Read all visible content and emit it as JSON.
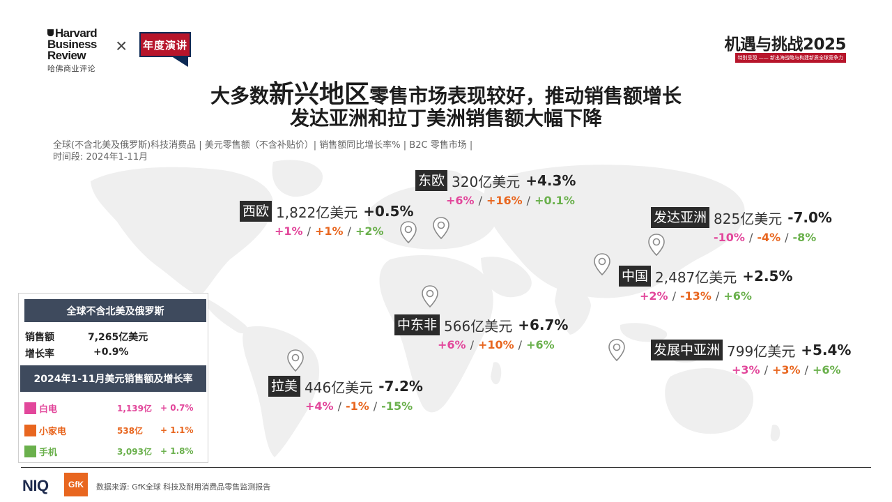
{
  "header": {
    "hbr_lines": [
      "Harvard",
      "Business",
      "Review"
    ],
    "hbr_cn": "哈佛商业评论",
    "times_symbol": "×",
    "badge": "年度演讲",
    "event_title": "机遇与挑战2025",
    "event_subtitle": "特别呈现 —— 新出海战略与构建新质全球竞争力"
  },
  "title": {
    "line1_prefix": "大多数",
    "line1_big": "新兴地区",
    "line1_suffix": "零售市场表现较好，推动销售额增长",
    "line2": "发达亚洲和拉丁美洲销售额大幅下降"
  },
  "subtitle": {
    "line1": "全球(不含北美及俄罗斯)科技消费品 | 美元零售额（不含补贴价）| 销售额同比增长率% | B2C 零售市场 |",
    "line2": "时间段: 2024年1-11月"
  },
  "regions": [
    {
      "name": "东欧",
      "amount": "320亿美元",
      "growth": "+4.3%",
      "cats": [
        "+6%",
        "+16%",
        "+0.1%"
      ]
    },
    {
      "name": "西欧",
      "amount": "1,822亿美元",
      "growth": "+0.5%",
      "cats": [
        "+1%",
        "+1%",
        "+2%"
      ]
    },
    {
      "name": "发达亚洲",
      "amount": "825亿美元",
      "growth": "-7.0%",
      "cats": [
        "-10%",
        "-4%",
        "-8%"
      ]
    },
    {
      "name": "中国",
      "amount": "2,487亿美元",
      "growth": "+2.5%",
      "cats": [
        "+2%",
        "-13%",
        "+6%"
      ]
    },
    {
      "name": "中东非",
      "amount": "566亿美元",
      "growth": "+6.7%",
      "cats": [
        "+6%",
        "+10%",
        "+6%"
      ]
    },
    {
      "name": "发展中亚洲",
      "amount": "799亿美元",
      "growth": "+5.4%",
      "cats": [
        "+3%",
        "+3%",
        "+6%"
      ]
    },
    {
      "name": "拉美",
      "amount": "446亿美元",
      "growth": "-7.2%",
      "cats": [
        "+4%",
        "-1%",
        "-15%"
      ]
    }
  ],
  "summary": {
    "heading": "全球不含北美及俄罗斯",
    "sales_label": "销售额",
    "sales_value": "7,265亿美元",
    "growth_label": "增长率",
    "growth_value": "+0.9%",
    "heading2": "2024年1-11月美元销售额及增长率",
    "categories": [
      {
        "name": "白电",
        "amount": "1,139亿",
        "growth": "+ 0.7%",
        "color": "#e2479b"
      },
      {
        "name": "小家电",
        "amount": "538亿",
        "growth": "+ 1.1%",
        "color": "#e8661f"
      },
      {
        "name": "手机",
        "amount": "3,093亿",
        "growth": "+ 1.8%",
        "color": "#6ab04c"
      }
    ]
  },
  "footer": {
    "niq": "NIQ",
    "gfk": "GfK",
    "source": "数据来源:   GfK全球 科技及耐用消费品零售监测报告"
  },
  "colors": {
    "white_goods": "#e2479b",
    "small_appliances": "#e8661f",
    "mobile": "#6ab04c",
    "tag_bg": "#2b2b2b",
    "panel_header": "#3e4a5d",
    "brand_red": "#b7152b"
  }
}
